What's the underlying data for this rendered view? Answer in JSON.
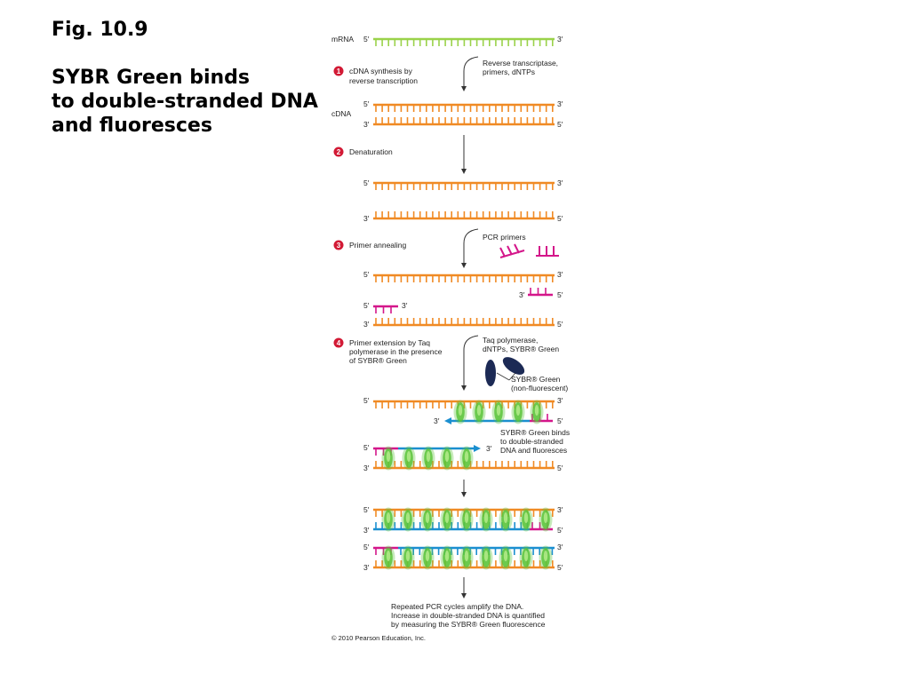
{
  "slide": {
    "fig_label": "Fig. 10.9",
    "heading_lines": [
      "SYBR Green binds",
      "to double-stranded DNA",
      "and fluoresces"
    ]
  },
  "colors": {
    "mrna": "#9ad24a",
    "cdna": "#f08a24",
    "primer": "#d4168a",
    "new_strand": "#1b8fd0",
    "sybr_glow": "#5bc43a",
    "sybr_dye": "#1c2a55",
    "step_badge": "#d21a35"
  },
  "diagram": {
    "mrna_label": "mRNA",
    "cdna_label": "cDNA",
    "five_prime": "5′",
    "three_prime": "3′",
    "steps": [
      {
        "number": "1",
        "lines": [
          "cDNA synthesis by",
          "reverse transcription"
        ]
      },
      {
        "number": "2",
        "lines": [
          "Denaturation"
        ]
      },
      {
        "number": "3",
        "lines": [
          "Primer annealing"
        ]
      },
      {
        "number": "4",
        "lines": [
          "Primer extension by Taq",
          "polymerase in the presence",
          "of SYBR® Green"
        ]
      }
    ],
    "arrow_notes": {
      "reverse_transcriptase": [
        "Reverse transcriptase,",
        "primers, dNTPs"
      ],
      "pcr_primers": "PCR primers",
      "taq": [
        "Taq polymerase,",
        "dNTPs, SYBR® Green"
      ]
    },
    "sybr_free_label": [
      "SYBR® Green",
      "(non-fluorescent)"
    ],
    "sybr_bound_label": [
      "SYBR® Green binds",
      "to double-stranded",
      "DNA and fluoresces"
    ],
    "conclusion": [
      "Repeated PCR cycles amplify the DNA.",
      "Increase in double-stranded DNA is quantified",
      "by measuring the SYBR® Green fluorescence"
    ],
    "copyright": "© 2010 Pearson Education, Inc."
  }
}
